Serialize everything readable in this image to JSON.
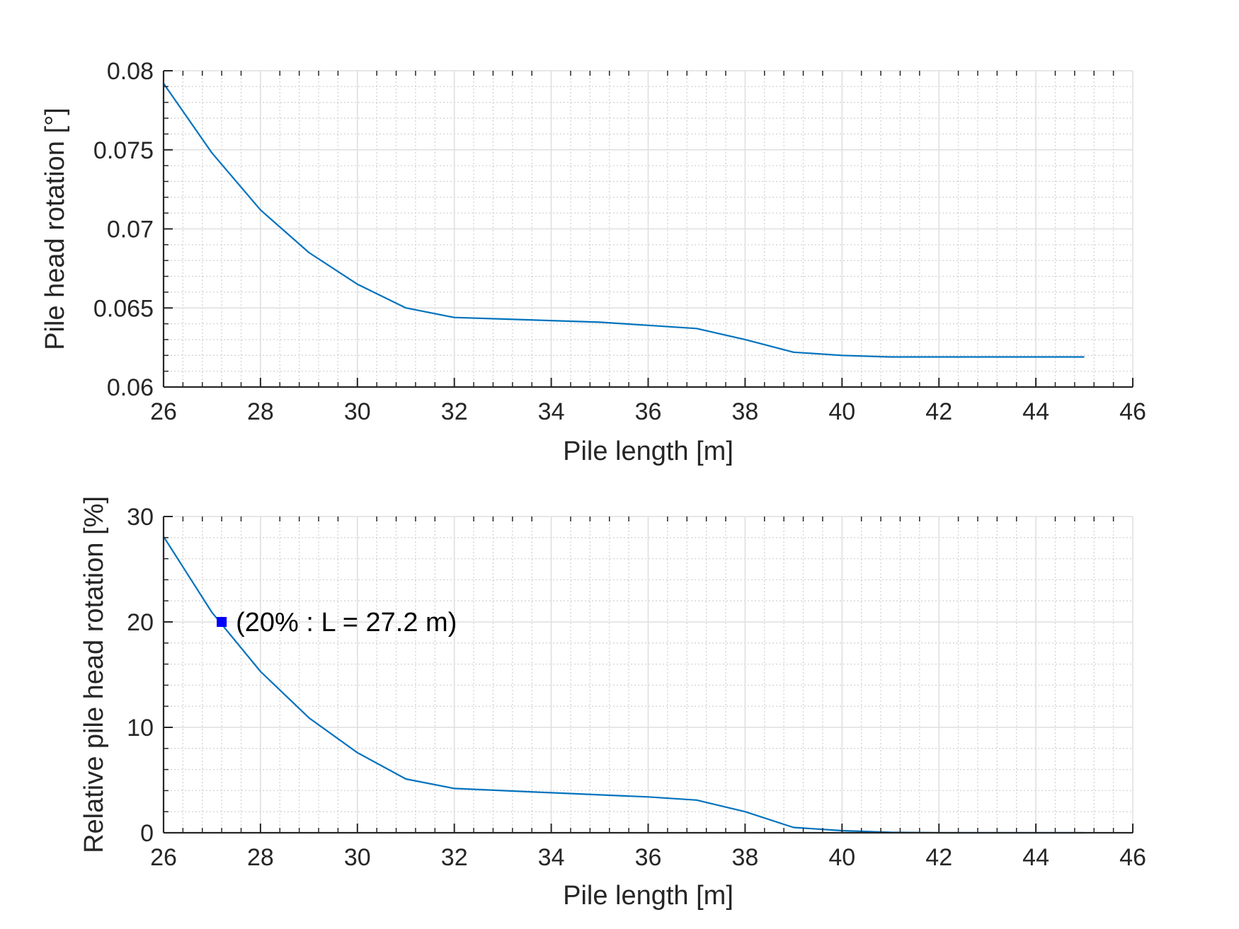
{
  "chart_data": [
    {
      "type": "line",
      "xlabel": "Pile length [m]",
      "ylabel": "Pile head rotation [°]",
      "xlim": [
        26,
        46
      ],
      "ylim": [
        0.06,
        0.08
      ],
      "xticks": [
        "26",
        "28",
        "30",
        "32",
        "34",
        "36",
        "38",
        "40",
        "42",
        "44",
        "46"
      ],
      "yticks": [
        "0.06",
        "0.065",
        "0.07",
        "0.075",
        "0.08"
      ],
      "grid": true,
      "minor_grid": true,
      "series": [
        {
          "color": "#0072BD",
          "x": [
            26,
            27,
            28,
            29,
            30,
            31,
            32,
            33,
            34,
            35,
            36,
            37,
            38,
            39,
            40,
            41,
            42,
            43,
            44,
            45
          ],
          "y": [
            0.0792,
            0.0748,
            0.0712,
            0.0685,
            0.0665,
            0.065,
            0.0644,
            0.0643,
            0.0642,
            0.0641,
            0.0639,
            0.0637,
            0.063,
            0.0622,
            0.062,
            0.0619,
            0.0619,
            0.0619,
            0.0619,
            0.0619
          ]
        }
      ]
    },
    {
      "type": "line",
      "xlabel": "Pile length [m]",
      "ylabel": "Relative pile head rotation [%]",
      "xlim": [
        26,
        46
      ],
      "ylim": [
        0,
        30
      ],
      "xticks": [
        "26",
        "28",
        "30",
        "32",
        "34",
        "36",
        "38",
        "40",
        "42",
        "44",
        "46"
      ],
      "yticks": [
        "0",
        "10",
        "20",
        "30"
      ],
      "grid": true,
      "minor_grid": true,
      "series": [
        {
          "color": "#0072BD",
          "x": [
            26,
            27,
            28,
            29,
            30,
            31,
            32,
            33,
            34,
            35,
            36,
            37,
            38,
            39,
            40,
            41,
            42,
            43,
            44,
            45
          ],
          "y": [
            28.1,
            20.9,
            15.3,
            10.9,
            7.6,
            5.1,
            4.2,
            4.0,
            3.8,
            3.6,
            3.4,
            3.1,
            2.0,
            0.5,
            0.2,
            0.05,
            0.0,
            0.0,
            0.0,
            0.0
          ]
        }
      ],
      "annotations": [
        {
          "x": 27.2,
          "y": 20,
          "marker": "square",
          "color": "#0000FF",
          "text": "(20% : L = 27.2 m)"
        }
      ]
    }
  ]
}
